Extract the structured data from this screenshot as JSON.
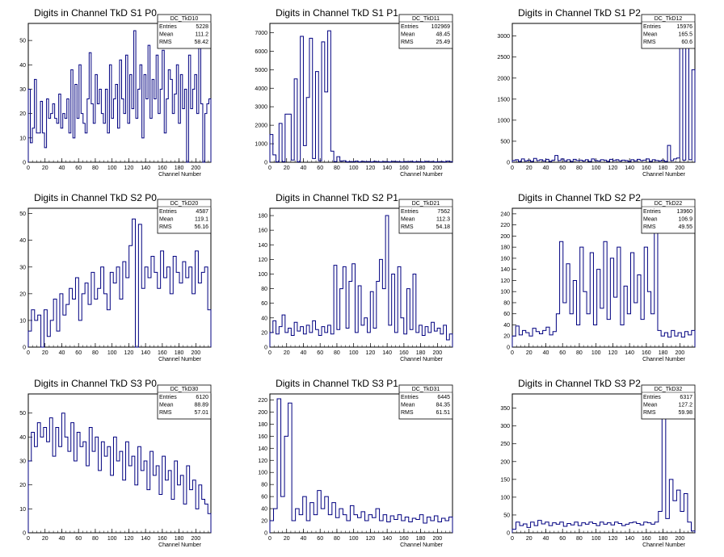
{
  "chart_data": [
    {
      "type": "line",
      "title": "Digits in Channel TkD S1 P0",
      "xlabel": "Channel Number",
      "ylabel": "",
      "xlim": [
        0,
        218
      ],
      "ylim": [
        0,
        57
      ],
      "xticks": [
        0,
        20,
        40,
        60,
        80,
        100,
        120,
        140,
        160,
        180,
        200
      ],
      "yticks": [
        0,
        10,
        20,
        30,
        40,
        50
      ],
      "stats": {
        "name": "DC_TkD10",
        "entries": "5228",
        "mean": "111.2",
        "rms": "58.42"
      },
      "series": [
        {
          "values": [
            30,
            8,
            14,
            34,
            12,
            12,
            25,
            12,
            6,
            26,
            18,
            20,
            24,
            18,
            16,
            28,
            14,
            20,
            18,
            26,
            12,
            38,
            10,
            32,
            18,
            40,
            20,
            16,
            12,
            26,
            45,
            24,
            16,
            36,
            24,
            30,
            20,
            16,
            30,
            12,
            40,
            18,
            26,
            32,
            14,
            42,
            26,
            20,
            44,
            16,
            36,
            22,
            54,
            18,
            30,
            40,
            10,
            36,
            26,
            48,
            18,
            34,
            26,
            44,
            20,
            30,
            46,
            12,
            26,
            38,
            34,
            20,
            28,
            40,
            16,
            36,
            22,
            30,
            0,
            44,
            22,
            30,
            36,
            20,
            48,
            24,
            0,
            20,
            24,
            26
          ]
        }
      ]
    },
    {
      "type": "line",
      "title": "Digits in Channel TkD S1 P1",
      "xlabel": "Channel Number",
      "ylabel": "",
      "xlim": [
        0,
        218
      ],
      "ylim": [
        0,
        7500
      ],
      "xticks": [
        0,
        20,
        40,
        60,
        80,
        100,
        120,
        140,
        160,
        180,
        200
      ],
      "yticks": [
        0,
        1000,
        2000,
        3000,
        4000,
        5000,
        6000,
        7000
      ],
      "stats": {
        "name": "DC_TkD11",
        "entries": "102969",
        "mean": "48.45",
        "rms": "25.49"
      },
      "series": [
        {
          "values": [
            1500,
            400,
            20,
            2100,
            30,
            2600,
            2600,
            120,
            4500,
            20,
            6800,
            900,
            3500,
            6700,
            200,
            4900,
            80,
            6500,
            3800,
            7100,
            600,
            40,
            300,
            60,
            80,
            20,
            40,
            30,
            60,
            20,
            50,
            30,
            40,
            20,
            50,
            30,
            20,
            40,
            30,
            20,
            50,
            40,
            30,
            20,
            40,
            30,
            50,
            20,
            40,
            30,
            20,
            50,
            30,
            40,
            20,
            30,
            40,
            20,
            60,
            30
          ]
        }
      ]
    },
    {
      "type": "line",
      "title": "Digits in Channel TkD S1 P2",
      "xlabel": "Channel Number",
      "ylabel": "",
      "xlim": [
        0,
        218
      ],
      "ylim": [
        0,
        3300
      ],
      "xticks": [
        0,
        20,
        40,
        60,
        80,
        100,
        120,
        140,
        160,
        180,
        200
      ],
      "yticks": [
        0,
        500,
        1000,
        1500,
        2000,
        2500,
        3000
      ],
      "stats": {
        "name": "DC_TkD12",
        "entries": "15976",
        "mean": "165.5",
        "rms": "60.6"
      },
      "series": [
        {
          "values": [
            40,
            60,
            20,
            80,
            30,
            50,
            20,
            90,
            40,
            60,
            30,
            70,
            20,
            50,
            160,
            40,
            80,
            30,
            60,
            20,
            70,
            40,
            50,
            30,
            60,
            20,
            80,
            40,
            30,
            60,
            50,
            20,
            70,
            40,
            60,
            30,
            50,
            40,
            20,
            60,
            30,
            70,
            40,
            50,
            80,
            20,
            60,
            40,
            30,
            50,
            20,
            400,
            40,
            80,
            100,
            3300,
            50,
            3000,
            60,
            2200
          ]
        }
      ]
    },
    {
      "type": "line",
      "title": "Digits in Channel TkD S2 P0",
      "xlabel": "Channel Number",
      "ylabel": "",
      "xlim": [
        0,
        218
      ],
      "ylim": [
        0,
        52
      ],
      "xticks": [
        0,
        20,
        40,
        60,
        80,
        100,
        120,
        140,
        160,
        180,
        200
      ],
      "yticks": [
        0,
        10,
        20,
        30,
        40,
        50
      ],
      "stats": {
        "name": "DC_TkD20",
        "entries": "4587",
        "mean": "119.1",
        "rms": "56.16"
      },
      "series": [
        {
          "values": [
            6,
            14,
            10,
            12,
            0,
            14,
            4,
            10,
            18,
            6,
            20,
            12,
            16,
            22,
            18,
            26,
            10,
            20,
            24,
            16,
            28,
            18,
            22,
            30,
            20,
            14,
            28,
            24,
            30,
            18,
            32,
            26,
            38,
            48,
            0,
            46,
            22,
            30,
            26,
            34,
            28,
            22,
            36,
            26,
            30,
            20,
            34,
            28,
            24,
            32,
            26,
            30,
            20,
            36,
            24,
            28,
            30,
            14
          ]
        }
      ]
    },
    {
      "type": "line",
      "title": "Digits in Channel TkD S2 P1",
      "xlabel": "Channel Number",
      "ylabel": "",
      "xlim": [
        0,
        218
      ],
      "ylim": [
        0,
        190
      ],
      "xticks": [
        0,
        20,
        40,
        60,
        80,
        100,
        120,
        140,
        160,
        180,
        200
      ],
      "yticks": [
        0,
        20,
        40,
        60,
        80,
        100,
        120,
        140,
        160,
        180
      ],
      "stats": {
        "name": "DC_TkD21",
        "entries": "7562",
        "mean": "112.3",
        "rms": "54.18"
      },
      "series": [
        {
          "values": [
            20,
            36,
            18,
            28,
            44,
            20,
            26,
            16,
            34,
            22,
            28,
            18,
            30,
            20,
            36,
            24,
            16,
            28,
            20,
            30,
            18,
            112,
            24,
            80,
            110,
            26,
            90,
            114,
            20,
            84,
            30,
            40,
            20,
            76,
            26,
            90,
            120,
            80,
            180,
            30,
            100,
            20,
            110,
            40,
            18,
            80,
            24,
            100,
            20,
            30,
            16,
            28,
            20,
            34,
            22,
            26,
            18,
            30,
            10,
            18
          ]
        }
      ]
    },
    {
      "type": "line",
      "title": "Digits in Channel TkD S2 P2",
      "xlabel": "Channel Number",
      "ylabel": "",
      "xlim": [
        0,
        218
      ],
      "ylim": [
        0,
        250
      ],
      "xticks": [
        0,
        20,
        40,
        60,
        80,
        100,
        120,
        140,
        160,
        180,
        200
      ],
      "yticks": [
        0,
        20,
        40,
        60,
        80,
        100,
        120,
        140,
        160,
        180,
        200,
        220,
        240
      ],
      "stats": {
        "name": "DC_TkD22",
        "entries": "13960",
        "mean": "106.9",
        "rms": "49.55"
      },
      "series": [
        {
          "values": [
            20,
            38,
            22,
            30,
            26,
            20,
            34,
            28,
            24,
            30,
            36,
            22,
            28,
            60,
            190,
            80,
            150,
            60,
            120,
            40,
            180,
            100,
            60,
            170,
            40,
            140,
            70,
            190,
            50,
            160,
            90,
            180,
            40,
            110,
            60,
            170,
            80,
            130,
            50,
            180,
            100,
            60,
            235,
            30,
            20,
            26,
            18,
            30,
            20,
            26,
            18,
            28,
            22,
            30
          ]
        }
      ]
    },
    {
      "type": "line",
      "title": "Digits in Channel TkD S3 P0",
      "xlabel": "Channel Number",
      "ylabel": "",
      "xlim": [
        0,
        218
      ],
      "ylim": [
        0,
        58
      ],
      "xticks": [
        0,
        20,
        40,
        60,
        80,
        100,
        120,
        140,
        160,
        180,
        200
      ],
      "yticks": [
        0,
        10,
        20,
        30,
        40,
        50
      ],
      "stats": {
        "name": "DC_TkD30",
        "entries": "6120",
        "mean": "88.89",
        "rms": "57.01"
      },
      "series": [
        {
          "values": [
            30,
            42,
            36,
            46,
            40,
            44,
            38,
            48,
            32,
            44,
            36,
            50,
            40,
            34,
            46,
            30,
            42,
            36,
            38,
            28,
            44,
            34,
            40,
            26,
            38,
            32,
            36,
            24,
            40,
            30,
            34,
            22,
            38,
            28,
            32,
            20,
            36,
            26,
            30,
            18,
            34,
            24,
            28,
            16,
            32,
            22,
            26,
            14,
            30,
            20,
            24,
            12,
            28,
            18,
            22,
            10,
            20,
            14,
            12,
            8
          ]
        }
      ]
    },
    {
      "type": "line",
      "title": "Digits in Channel TkD S3 P1",
      "xlabel": "Channel Number",
      "ylabel": "",
      "xlim": [
        0,
        218
      ],
      "ylim": [
        0,
        230
      ],
      "xticks": [
        0,
        20,
        40,
        60,
        80,
        100,
        120,
        140,
        160,
        180,
        200
      ],
      "yticks": [
        0,
        20,
        40,
        60,
        80,
        100,
        120,
        140,
        160,
        180,
        200,
        220
      ],
      "stats": {
        "name": "DC_TkD31",
        "entries": "6445",
        "mean": "84.35",
        "rms": "61.51"
      },
      "series": [
        {
          "values": [
            20,
            40,
            222,
            60,
            160,
            215,
            20,
            40,
            30,
            60,
            20,
            50,
            30,
            70,
            40,
            60,
            30,
            50,
            25,
            40,
            30,
            20,
            45,
            30,
            25,
            35,
            20,
            30,
            25,
            40,
            20,
            30,
            18,
            28,
            22,
            30,
            20,
            26,
            18,
            24,
            22,
            30,
            16,
            26,
            20,
            28,
            18,
            24,
            20,
            26
          ]
        }
      ]
    },
    {
      "type": "line",
      "title": "Digits in Channel TkD S3 P2",
      "xlabel": "Channel Number",
      "ylabel": "",
      "xlim": [
        0,
        218
      ],
      "ylim": [
        0,
        390
      ],
      "xticks": [
        0,
        20,
        40,
        60,
        80,
        100,
        120,
        140,
        160,
        180,
        200
      ],
      "yticks": [
        0,
        50,
        100,
        150,
        200,
        250,
        300,
        350
      ],
      "stats": {
        "name": "DC_TkD32",
        "entries": "6317",
        "mean": "127.2",
        "rms": "59.98"
      },
      "series": [
        {
          "values": [
            10,
            30,
            20,
            25,
            15,
            30,
            20,
            35,
            25,
            30,
            20,
            28,
            24,
            30,
            18,
            26,
            22,
            30,
            20,
            28,
            24,
            30,
            26,
            20,
            30,
            24,
            28,
            22,
            30,
            26,
            20,
            24,
            28,
            30,
            26,
            22,
            30,
            28,
            24,
            30,
            60,
            370,
            40,
            150,
            90,
            120,
            60,
            110,
            30,
            5
          ]
        }
      ]
    }
  ]
}
